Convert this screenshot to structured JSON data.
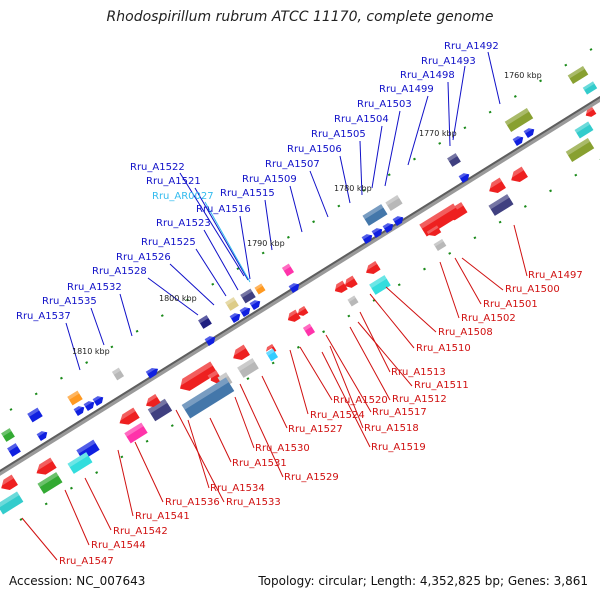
{
  "title": "Rhodospirillum rubrum ATCC 11170, complete genome",
  "accession_label": "Accession: NC_007643",
  "topology_label": "Topology: circular; Length: 4,352,825 bp; Genes: 3,861",
  "colors": {
    "backbone": "#707070",
    "forward_label": "#1010c8",
    "rna_label": "#33bbee",
    "reverse_label": "#d01010",
    "tick": "#1a8a1a"
  },
  "kbp_ticks": [
    "1760 kbp",
    "1770 kbp",
    "1780 kbp",
    "1790 kbp",
    "1800 kbp",
    "1810 kbp"
  ],
  "forward_labels": [
    "Rru_A1492",
    "Rru_A1493",
    "Rru_A1498",
    "Rru_A1499",
    "Rru_A1503",
    "Rru_A1504",
    "Rru_A1505",
    "Rru_A1506",
    "Rru_A1507",
    "Rru_A1509",
    "Rru_A1515",
    "Rru_A1516",
    "Rru_A1522",
    "Rru_A1521",
    "Rru_AR0027",
    "Rru_A1523",
    "Rru_A1525",
    "Rru_A1526",
    "Rru_A1528",
    "Rru_A1532",
    "Rru_A1535",
    "Rru_A1537"
  ],
  "reverse_labels": [
    "Rru_A1497",
    "Rru_A1500",
    "Rru_A1501",
    "Rru_A1502",
    "Rru_A1508",
    "Rru_A1510",
    "Rru_A1513",
    "Rru_A1511",
    "Rru_A1512",
    "Rru_A1517",
    "Rru_A1518",
    "Rru_A1519",
    "Rru_A1520",
    "Rru_A1524",
    "Rru_A1527",
    "Rru_A1530",
    "Rru_A1531",
    "Rru_A1529",
    "Rru_A1534",
    "Rru_A1533",
    "Rru_A1536",
    "Rru_A1541",
    "Rru_A1542",
    "Rru_A1544",
    "Rru_A1547"
  ]
}
